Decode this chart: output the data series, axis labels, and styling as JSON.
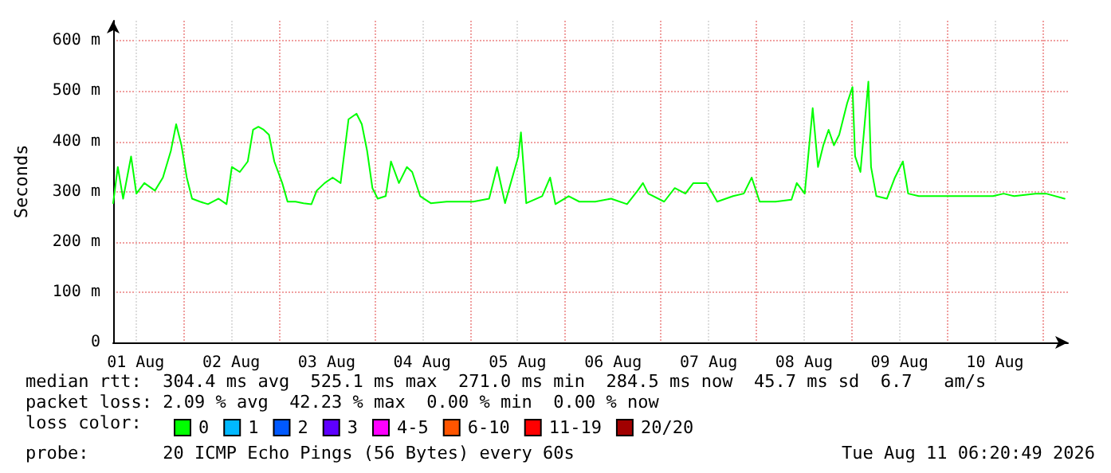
{
  "chart_data": {
    "type": "line",
    "ylabel": "Seconds",
    "legend_title": "loss color:",
    "legend": "bottom",
    "grid": true,
    "marker": "none",
    "line_style": "solid",
    "xlim": [
      "2026-08-01T06:20",
      "2026-08-11T06:20"
    ],
    "xticks": [
      {
        "value": "2026-08-01T12:00",
        "label": "01 Aug"
      },
      {
        "value": "2026-08-02T00:00",
        "label": null
      },
      {
        "value": "2026-08-02T12:00",
        "label": "02 Aug"
      },
      {
        "value": "2026-08-03T00:00",
        "label": null
      },
      {
        "value": "2026-08-03T12:00",
        "label": "03 Aug"
      },
      {
        "value": "2026-08-04T00:00",
        "label": null
      },
      {
        "value": "2026-08-04T12:00",
        "label": "04 Aug"
      },
      {
        "value": "2026-08-05T00:00",
        "label": null
      },
      {
        "value": "2026-08-05T12:00",
        "label": "05 Aug"
      },
      {
        "value": "2026-08-06T00:00",
        "label": null
      },
      {
        "value": "2026-08-06T12:00",
        "label": "06 Aug"
      },
      {
        "value": "2026-08-07T00:00",
        "label": null
      },
      {
        "value": "2026-08-07T12:00",
        "label": "07 Aug"
      },
      {
        "value": "2026-08-08T00:00",
        "label": null
      },
      {
        "value": "2026-08-08T12:00",
        "label": "08 Aug"
      },
      {
        "value": "2026-08-09T00:00",
        "label": null
      },
      {
        "value": "2026-08-09T12:00",
        "label": "09 Aug"
      },
      {
        "value": "2026-08-10T00:00",
        "label": null
      },
      {
        "value": "2026-08-10T12:00",
        "label": "10 Aug"
      },
      {
        "value": "2026-08-11T00:00",
        "label": null
      }
    ],
    "ylim": [
      0,
      640
    ],
    "yticks": [
      0,
      {
        "value": 100,
        "label": "100 m"
      },
      {
        "value": 200,
        "label": "200 m"
      },
      {
        "value": 300,
        "label": "300 m"
      },
      {
        "value": 400,
        "label": "400 m"
      },
      {
        "value": 500,
        "label": "500 m"
      },
      {
        "value": 600,
        "label": "600 m"
      }
    ],
    "x": [
      "2026-08-01T06:20",
      "2026-08-01T07:30",
      "2026-08-01T08:50",
      "2026-08-01T10:50",
      "2026-08-01T12:10",
      "2026-08-01T14:10",
      "2026-08-01T16:50",
      "2026-08-01T18:50",
      "2026-08-01T20:50",
      "2026-08-01T22:10",
      "2026-08-01T23:30",
      "2026-08-02T00:50",
      "2026-08-02T02:10",
      "2026-08-02T04:10",
      "2026-08-02T06:10",
      "2026-08-02T08:50",
      "2026-08-02T10:50",
      "2026-08-02T12:10",
      "2026-08-02T14:10",
      "2026-08-02T16:10",
      "2026-08-02T17:30",
      "2026-08-02T18:50",
      "2026-08-02T20:10",
      "2026-08-02T21:30",
      "2026-08-02T22:50",
      "2026-08-03T00:50",
      "2026-08-03T02:10",
      "2026-08-03T04:10",
      "2026-08-03T06:10",
      "2026-08-03T08:10",
      "2026-08-03T09:30",
      "2026-08-03T11:30",
      "2026-08-03T13:30",
      "2026-08-03T15:30",
      "2026-08-03T17:30",
      "2026-08-03T19:30",
      "2026-08-03T20:50",
      "2026-08-03T22:10",
      "2026-08-03T23:30",
      "2026-08-04T00:50",
      "2026-08-04T02:50",
      "2026-08-04T04:10",
      "2026-08-04T06:10",
      "2026-08-04T08:10",
      "2026-08-04T09:30",
      "2026-08-04T11:30",
      "2026-08-04T14:10",
      "2026-08-04T18:10",
      "2026-08-05T00:50",
      "2026-08-05T04:50",
      "2026-08-05T06:50",
      "2026-08-05T08:50",
      "2026-08-05T12:10",
      "2026-08-05T12:50",
      "2026-08-05T14:10",
      "2026-08-05T18:10",
      "2026-08-05T20:10",
      "2026-08-05T21:30",
      "2026-08-06T00:50",
      "2026-08-06T03:30",
      "2026-08-06T07:30",
      "2026-08-06T11:30",
      "2026-08-06T15:30",
      "2026-08-06T18:10",
      "2026-08-06T19:30",
      "2026-08-06T20:50",
      "2026-08-07T00:50",
      "2026-08-07T03:30",
      "2026-08-07T06:10",
      "2026-08-07T08:10",
      "2026-08-07T11:30",
      "2026-08-07T14:10",
      "2026-08-07T18:10",
      "2026-08-07T20:50",
      "2026-08-07T22:50",
      "2026-08-08T00:50",
      "2026-08-08T04:50",
      "2026-08-08T08:50",
      "2026-08-08T10:10",
      "2026-08-08T12:10",
      "2026-08-08T14:10",
      "2026-08-08T15:30",
      "2026-08-08T16:50",
      "2026-08-08T18:10",
      "2026-08-08T19:30",
      "2026-08-08T20:50",
      "2026-08-08T22:50",
      "2026-08-09T00:10",
      "2026-08-09T00:50",
      "2026-08-09T02:10",
      "2026-08-09T04:10",
      "2026-08-09T04:50",
      "2026-08-09T06:10",
      "2026-08-09T08:50",
      "2026-08-09T10:50",
      "2026-08-09T12:50",
      "2026-08-09T14:10",
      "2026-08-09T16:50",
      "2026-08-10T00:50",
      "2026-08-10T11:30",
      "2026-08-10T14:10",
      "2026-08-10T16:50",
      "2026-08-10T22:10",
      "2026-08-11T00:50",
      "2026-08-11T05:30"
    ],
    "series": [
      {
        "name": "0",
        "color": "#00ff00",
        "values": [
          277,
          349,
          286,
          370,
          296,
          317,
          302,
          328,
          381,
          434,
          392,
          328,
          286,
          280,
          275,
          286,
          275,
          349,
          339,
          360,
          423,
          429,
          423,
          413,
          360,
          317,
          280,
          280,
          277,
          275,
          302,
          317,
          328,
          317,
          444,
          455,
          434,
          381,
          307,
          286,
          291,
          360,
          317,
          349,
          339,
          291,
          277,
          280,
          280,
          286,
          349,
          277,
          370,
          418,
          277,
          291,
          328,
          275,
          291,
          280,
          280,
          286,
          275,
          302,
          317,
          296,
          280,
          307,
          296,
          317,
          317,
          280,
          291,
          296,
          328,
          280,
          280,
          284,
          317,
          296,
          466,
          349,
          392,
          423,
          392,
          413,
          476,
          508,
          370,
          339,
          519,
          349,
          291,
          286,
          328,
          360,
          296,
          291,
          291,
          291,
          296,
          291,
          296,
          296,
          286
        ]
      },
      {
        "name": "1",
        "color": "#00b8ff",
        "values": [
          null,
          null,
          null,
          null,
          null,
          null,
          null,
          null,
          null,
          null,
          null,
          null,
          null,
          null,
          null,
          null,
          null,
          null,
          null,
          null,
          null,
          null,
          null,
          null,
          null,
          null,
          null,
          null,
          null,
          null,
          null,
          null,
          null,
          null,
          null,
          null,
          null,
          null,
          null,
          null,
          null,
          null,
          null,
          null,
          null,
          null,
          null,
          null,
          null,
          null,
          null,
          null,
          null,
          null,
          null,
          null,
          null,
          null,
          null,
          null,
          null,
          null,
          null,
          null,
          null,
          null,
          null,
          null,
          null,
          null,
          null,
          null,
          null,
          null,
          null,
          null,
          null,
          null,
          null,
          null,
          null,
          null,
          null,
          null,
          null,
          null,
          null,
          null,
          null,
          null,
          null,
          null,
          null,
          null,
          null,
          null,
          null,
          null,
          null,
          null,
          null,
          null,
          null,
          null,
          null
        ]
      },
      {
        "name": "2",
        "color": "#0059ff",
        "values": [
          null,
          null,
          null,
          null,
          null,
          null,
          null,
          null,
          null,
          null,
          null,
          null,
          null,
          null,
          null,
          null,
          null,
          null,
          null,
          null,
          null,
          null,
          null,
          null,
          null,
          null,
          null,
          null,
          null,
          null,
          null,
          null,
          null,
          null,
          null,
          null,
          null,
          null,
          null,
          null,
          null,
          null,
          null,
          null,
          null,
          null,
          null,
          null,
          null,
          null,
          null,
          null,
          null,
          null,
          null,
          null,
          null,
          null,
          null,
          null,
          null,
          null,
          null,
          null,
          null,
          null,
          null,
          null,
          null,
          null,
          null,
          null,
          null,
          null,
          null,
          null,
          null,
          null,
          null,
          null,
          null,
          null,
          null,
          null,
          null,
          null,
          null,
          null,
          null,
          null,
          null,
          null,
          null,
          null,
          null,
          null,
          null,
          null,
          null,
          null,
          null,
          null,
          null,
          null,
          null
        ]
      },
      {
        "name": "3",
        "color": "#5e00ff",
        "values": [
          null,
          null,
          null,
          null,
          null,
          null,
          null,
          null,
          null,
          null,
          null,
          null,
          null,
          null,
          null,
          null,
          null,
          null,
          null,
          null,
          null,
          null,
          null,
          null,
          null,
          null,
          null,
          null,
          null,
          null,
          null,
          null,
          null,
          null,
          null,
          null,
          null,
          null,
          null,
          null,
          null,
          null,
          null,
          null,
          null,
          null,
          null,
          null,
          null,
          null,
          null,
          null,
          null,
          null,
          null,
          null,
          null,
          null,
          null,
          null,
          null,
          null,
          null,
          null,
          null,
          null,
          null,
          null,
          null,
          null,
          null,
          null,
          null,
          null,
          null,
          null,
          null,
          null,
          null,
          null,
          null,
          null,
          null,
          null,
          null,
          null,
          null,
          null,
          null,
          null,
          null,
          null,
          null,
          null,
          null,
          null,
          null,
          null,
          null,
          null,
          null,
          null,
          null,
          null,
          null
        ]
      },
      {
        "name": "4-5",
        "color": "#ff00ff",
        "values": [
          null,
          null,
          null,
          null,
          null,
          null,
          null,
          null,
          null,
          null,
          null,
          null,
          null,
          null,
          null,
          null,
          null,
          null,
          null,
          null,
          null,
          null,
          null,
          null,
          null,
          null,
          null,
          null,
          null,
          null,
          null,
          null,
          null,
          null,
          null,
          null,
          null,
          null,
          null,
          null,
          null,
          null,
          null,
          null,
          null,
          null,
          null,
          null,
          null,
          null,
          null,
          null,
          null,
          null,
          null,
          null,
          null,
          null,
          null,
          null,
          null,
          null,
          null,
          null,
          null,
          null,
          null,
          null,
          null,
          null,
          null,
          null,
          null,
          null,
          null,
          null,
          null,
          null,
          null,
          null,
          null,
          null,
          null,
          null,
          null,
          null,
          null,
          null,
          null,
          null,
          null,
          null,
          null,
          null,
          null,
          null,
          null,
          null,
          null,
          null,
          null,
          null,
          null,
          null,
          null
        ]
      },
      {
        "name": "6-10",
        "color": "#ff5500",
        "values": [
          null,
          null,
          null,
          null,
          null,
          null,
          null,
          null,
          null,
          null,
          null,
          null,
          null,
          null,
          null,
          null,
          null,
          null,
          null,
          null,
          null,
          null,
          null,
          null,
          null,
          null,
          null,
          null,
          null,
          null,
          null,
          null,
          null,
          null,
          null,
          null,
          null,
          null,
          null,
          null,
          null,
          null,
          null,
          null,
          null,
          null,
          null,
          null,
          null,
          null,
          null,
          null,
          null,
          null,
          null,
          null,
          null,
          null,
          null,
          null,
          null,
          null,
          null,
          null,
          null,
          null,
          null,
          null,
          null,
          null,
          null,
          null,
          null,
          null,
          null,
          null,
          null,
          null,
          null,
          null,
          null,
          null,
          null,
          null,
          null,
          null,
          null,
          null,
          null,
          null,
          null,
          null,
          null,
          null,
          null,
          null,
          null,
          null,
          null,
          null,
          null,
          null,
          null,
          null,
          null
        ]
      },
      {
        "name": "11-19",
        "color": "#ff0000",
        "values": [
          null,
          null,
          null,
          null,
          null,
          null,
          null,
          null,
          null,
          null,
          null,
          null,
          null,
          null,
          null,
          null,
          null,
          null,
          null,
          null,
          null,
          null,
          null,
          null,
          null,
          null,
          null,
          null,
          null,
          null,
          null,
          null,
          null,
          null,
          null,
          null,
          null,
          null,
          null,
          null,
          null,
          null,
          null,
          null,
          null,
          null,
          null,
          null,
          null,
          null,
          null,
          null,
          null,
          null,
          null,
          null,
          null,
          null,
          null,
          null,
          null,
          null,
          null,
          null,
          null,
          null,
          null,
          null,
          null,
          null,
          null,
          null,
          null,
          null,
          null,
          null,
          null,
          null,
          null,
          null,
          null,
          null,
          null,
          null,
          null,
          null,
          null,
          null,
          null,
          null,
          null,
          null,
          null,
          null,
          null,
          null,
          null,
          null,
          null,
          null,
          null,
          null,
          null,
          null,
          null
        ]
      },
      {
        "name": "20/20",
        "color": "#a10000",
        "values": [
          null,
          null,
          null,
          null,
          null,
          null,
          null,
          null,
          null,
          null,
          null,
          null,
          null,
          null,
          null,
          null,
          null,
          null,
          null,
          null,
          null,
          null,
          null,
          null,
          null,
          null,
          null,
          null,
          null,
          null,
          null,
          null,
          null,
          null,
          null,
          null,
          null,
          null,
          null,
          null,
          null,
          null,
          null,
          null,
          null,
          null,
          null,
          null,
          null,
          null,
          null,
          null,
          null,
          null,
          null,
          null,
          null,
          null,
          null,
          null,
          null,
          null,
          null,
          null,
          null,
          null,
          null,
          null,
          null,
          null,
          null,
          null,
          null,
          null,
          null,
          null,
          null,
          null,
          null,
          null,
          null,
          null,
          null,
          null,
          null,
          null,
          null,
          null,
          null,
          null,
          null,
          null,
          null,
          null,
          null,
          null,
          null,
          null,
          null,
          null,
          null,
          null,
          null,
          null,
          null
        ]
      }
    ],
    "annotations": [
      "median rtt:  304.4 ms avg  525.1 ms max  271.0 ms min  284.5 ms now  45.7 ms sd  6.7   am/s",
      "packet loss: 2.09 % avg  42.23 % max  0.00 % min  0.00 % now",
      "probe:       20 ICMP Echo Pings (56 Bytes) every 60s",
      "Tue Aug 11 06:20:49 2026"
    ]
  }
}
